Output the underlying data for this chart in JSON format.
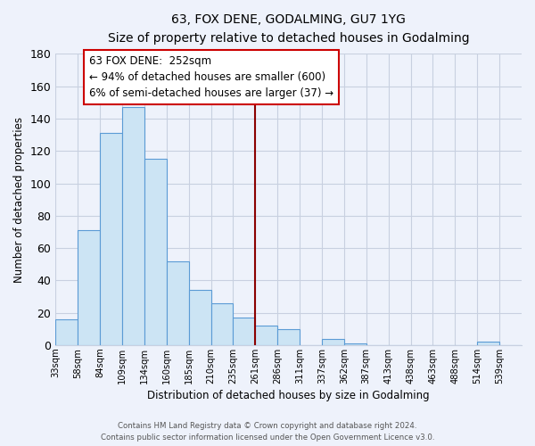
{
  "title": "63, FOX DENE, GODALMING, GU7 1YG",
  "subtitle": "Size of property relative to detached houses in Godalming",
  "xlabel": "Distribution of detached houses by size in Godalming",
  "ylabel": "Number of detached properties",
  "bar_values": [
    16,
    71,
    131,
    147,
    115,
    52,
    34,
    26,
    17,
    12,
    10,
    0,
    4,
    1,
    0,
    0,
    0,
    0,
    0,
    2,
    0
  ],
  "bar_labels": [
    "33sqm",
    "58sqm",
    "84sqm",
    "109sqm",
    "134sqm",
    "160sqm",
    "185sqm",
    "210sqm",
    "235sqm",
    "261sqm",
    "286sqm",
    "311sqm",
    "337sqm",
    "362sqm",
    "387sqm",
    "413sqm",
    "438sqm",
    "463sqm",
    "488sqm",
    "514sqm",
    "539sqm"
  ],
  "bar_color": "#cce4f4",
  "bar_edge_color": "#5b9bd5",
  "ylim": [
    0,
    180
  ],
  "yticks": [
    0,
    20,
    40,
    60,
    80,
    100,
    120,
    140,
    160,
    180
  ],
  "property_line_color": "#8b0000",
  "annotation_title": "63 FOX DENE:  252sqm",
  "annotation_line1": "← 94% of detached houses are smaller (600)",
  "annotation_line2": "6% of semi-detached houses are larger (37) →",
  "annotation_box_facecolor": "#ffffff",
  "annotation_box_edgecolor": "#cc0000",
  "footer_line1": "Contains HM Land Registry data © Crown copyright and database right 2024.",
  "footer_line2": "Contains public sector information licensed under the Open Government Licence v3.0.",
  "background_color": "#eef2fb",
  "grid_color": "#c8d0e0"
}
